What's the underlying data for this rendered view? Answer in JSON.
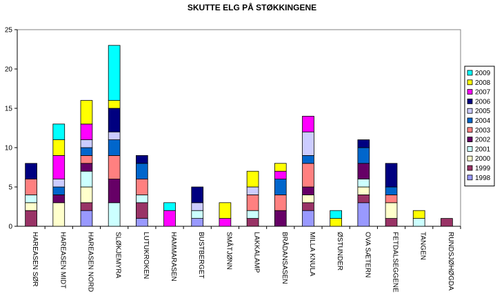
{
  "chart_data": {
    "type": "bar",
    "stacked": true,
    "title": "SKUTTE ELG PÅ STØKKINGENE",
    "xlabel": "",
    "ylabel": "",
    "ylim": [
      0,
      25
    ],
    "yticks": [
      0,
      5,
      10,
      15,
      20,
      25
    ],
    "grid": false,
    "legend_position": "right",
    "categories": [
      "HAREASEN SØR",
      "HAREASEN MIDT",
      "HAREASEN NORD",
      "SLØKJEMYRA",
      "LUTUKROKEN",
      "HAMMARASEN",
      "BUSTBERGET",
      "SMÅTJØNN",
      "LAKKALAMP",
      "BRÅDANSASEN",
      "MILLA KNULA",
      "ØSTUNDER",
      "OVA SÆTERN",
      "FETDALSEGGENE",
      "TANGEN",
      "RUNDSJØHØGDA"
    ],
    "series": [
      {
        "name": "1998",
        "color": "#9999FF",
        "values": [
          0,
          0,
          2,
          0,
          1,
          0,
          1,
          0,
          0,
          0,
          2,
          0,
          3,
          0,
          0,
          0
        ]
      },
      {
        "name": "1999",
        "color": "#993366",
        "values": [
          2,
          0,
          1,
          0,
          2,
          0,
          0,
          0,
          1,
          0,
          1,
          0,
          1,
          1,
          0,
          1
        ]
      },
      {
        "name": "2000",
        "color": "#FFFFCC",
        "values": [
          1,
          3,
          2,
          0,
          0,
          0,
          0,
          0,
          0,
          0,
          1,
          0,
          1,
          2,
          0,
          0
        ]
      },
      {
        "name": "2001",
        "color": "#CCFFFF",
        "values": [
          1,
          0,
          2,
          3,
          1,
          0,
          1,
          0,
          1,
          0,
          0,
          0,
          1,
          0,
          1,
          0
        ]
      },
      {
        "name": "2002",
        "color": "#660066",
        "values": [
          0,
          1,
          1,
          3,
          0,
          0,
          0,
          0,
          0,
          2,
          1,
          0,
          2,
          0,
          0,
          0
        ]
      },
      {
        "name": "2003",
        "color": "#FF8080",
        "values": [
          2,
          0,
          1,
          3,
          2,
          0,
          0,
          0,
          2,
          2,
          3,
          0,
          0,
          1,
          0,
          0
        ]
      },
      {
        "name": "2004",
        "color": "#0066CC",
        "values": [
          0,
          1,
          1,
          2,
          2,
          0,
          0,
          0,
          0,
          2,
          1,
          0,
          2,
          1,
          0,
          0
        ]
      },
      {
        "name": "2005",
        "color": "#CCCCFF",
        "values": [
          0,
          1,
          1,
          1,
          0,
          0,
          1,
          0,
          1,
          0,
          3,
          0,
          0,
          0,
          0,
          0
        ]
      },
      {
        "name": "2006",
        "color": "#000080",
        "values": [
          2,
          0,
          0,
          3,
          1,
          0,
          2,
          0,
          0,
          0,
          0,
          0,
          1,
          3,
          0,
          0
        ]
      },
      {
        "name": "2007",
        "color": "#FF00FF",
        "values": [
          0,
          3,
          2,
          0,
          0,
          2,
          0,
          1,
          0,
          1,
          2,
          0,
          0,
          0,
          0,
          0
        ]
      },
      {
        "name": "2008",
        "color": "#FFFF00",
        "values": [
          0,
          2,
          3,
          1,
          0,
          0,
          0,
          2,
          2,
          1,
          0,
          1,
          0,
          0,
          1,
          0
        ]
      },
      {
        "name": "2009",
        "color": "#00FFFF",
        "values": [
          0,
          2,
          0,
          7,
          0,
          1,
          0,
          0,
          0,
          0,
          0,
          1,
          0,
          0,
          0,
          0
        ]
      }
    ]
  }
}
